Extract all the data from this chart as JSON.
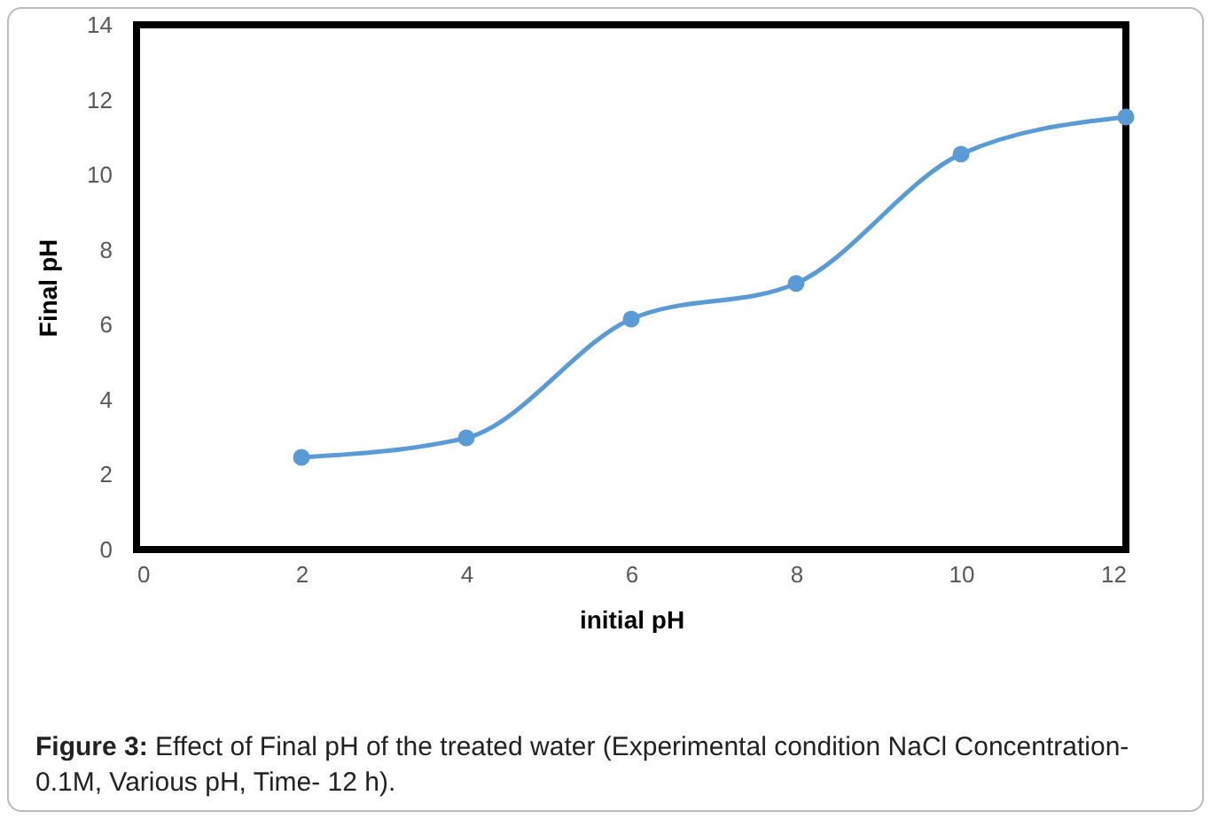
{
  "chart_data": {
    "type": "line",
    "xlabel": "initial pH",
    "ylabel": "Final pH",
    "x": [
      2,
      4,
      6,
      8,
      10,
      12
    ],
    "series": [
      {
        "color": "#5b9bd5",
        "values": [
          2.46,
          2.98,
          6.15,
          7.1,
          10.55,
          11.54
        ]
      }
    ],
    "xlim": [
      0,
      12
    ],
    "xticks": [
      0,
      2,
      4,
      6,
      8,
      10,
      12
    ],
    "ylim": [
      0,
      14
    ],
    "yticks": [
      0,
      2,
      4,
      6,
      8,
      10,
      12,
      14
    ],
    "grid": false,
    "marker": "circle",
    "line_style": "solid",
    "annotations": [
      "Figure 3: Effect of Final pH of the treated water (Experimental condition NaCl Concentration- 0.1M, Various pH, Time- 12 h)."
    ]
  }
}
